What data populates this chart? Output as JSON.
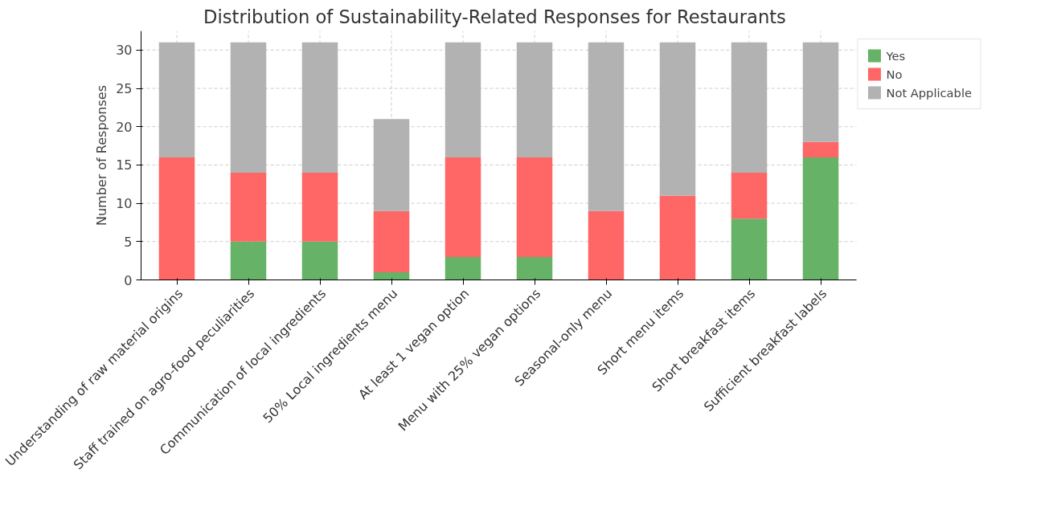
{
  "chart_data": {
    "type": "bar",
    "title": "Distribution of Sustainability-Related Responses for Restaurants",
    "ylabel": "Number of Responses",
    "categories": [
      "Understanding of raw material origins",
      "Staff trained on agro-food peculiarities",
      "Communication of local ingredients",
      "50% Local ingredients menu",
      "At least 1 vegan option",
      "Menu with 25% vegan options",
      "Seasonal-only menu",
      "Short menu items",
      "Short breakfast items",
      "Sufficient breakfast labels"
    ],
    "stacked": true,
    "series": [
      {
        "name": "Yes",
        "color": "#66b266",
        "values": [
          0,
          5,
          5,
          1,
          3,
          3,
          0,
          0,
          8,
          16
        ]
      },
      {
        "name": "No",
        "color": "#ff6666",
        "values": [
          16,
          9,
          9,
          8,
          13,
          13,
          9,
          11,
          6,
          2
        ]
      },
      {
        "name": "Not Applicable",
        "color": "#b2b2b2",
        "values": [
          15,
          17,
          17,
          12,
          15,
          15,
          22,
          20,
          17,
          13
        ]
      }
    ],
    "ylim": [
      0,
      32.5
    ],
    "yticks": [
      0,
      5,
      10,
      15,
      20,
      25,
      30
    ],
    "grid": true,
    "legend": "top right"
  }
}
